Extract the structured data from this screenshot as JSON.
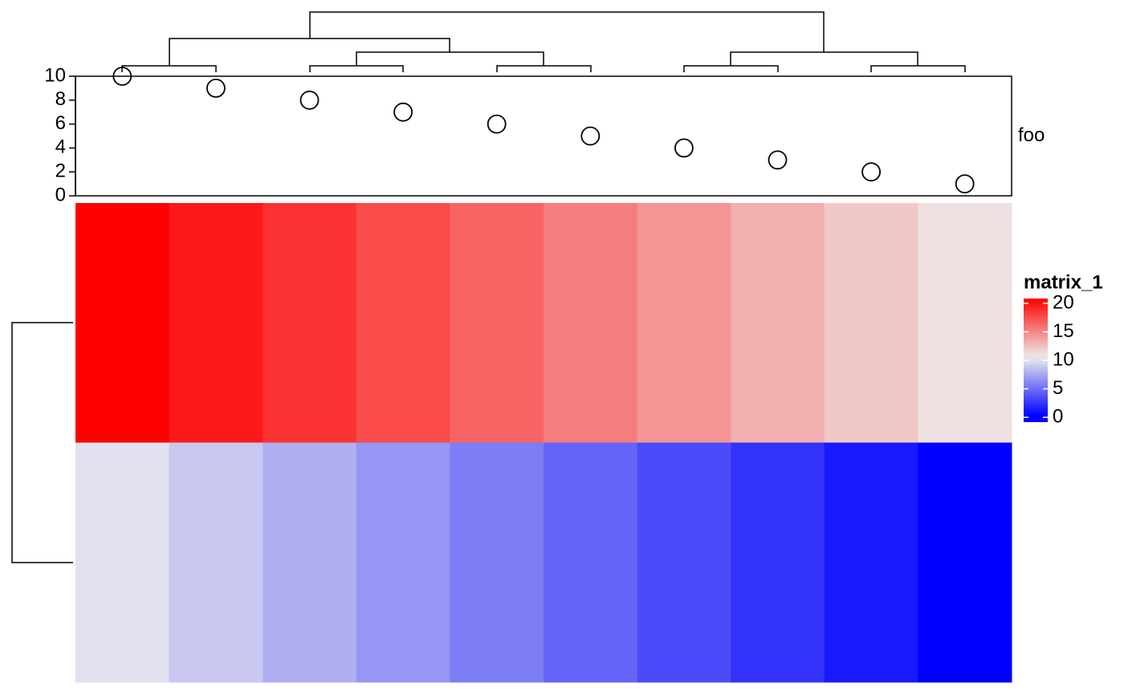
{
  "chart_data": {
    "type": "heatmap",
    "values": [
      [
        20,
        19,
        18,
        17,
        16,
        15,
        14,
        13,
        12,
        11
      ],
      [
        10,
        9,
        8,
        7,
        6,
        5,
        4,
        3,
        2,
        1
      ]
    ],
    "colorscale": [
      [
        1,
        "#0000ff"
      ],
      [
        10.5,
        "#eeeeee"
      ],
      [
        20,
        "#ff0000"
      ]
    ],
    "legend_title": "matrix_1",
    "legend_lim": [
      0,
      20
    ],
    "legend_ticks": [
      0,
      5,
      10,
      15,
      20
    ],
    "annotation": {
      "type": "scatter",
      "name": "foo",
      "values": [
        10,
        9,
        8,
        7,
        6,
        5,
        4,
        3,
        2,
        1
      ],
      "ylim": [
        0,
        10
      ],
      "yticks": [
        0,
        2,
        4,
        6,
        8,
        10
      ]
    }
  }
}
